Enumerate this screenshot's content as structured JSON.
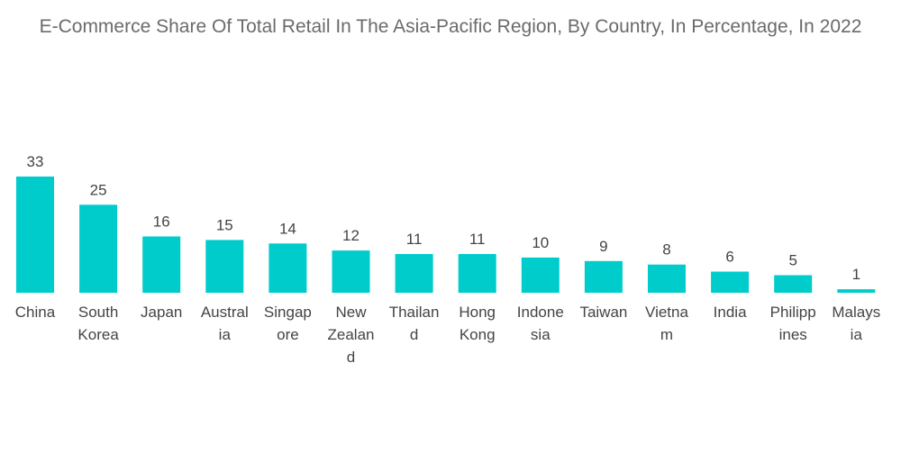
{
  "chart_data": {
    "type": "bar",
    "title": "E-Commerce Share Of Total Retail In The Asia-Pacific Region, By Country, In Percentage, In 2022",
    "categories": [
      "China",
      "South Korea",
      "Japan",
      "Australia",
      "Singapore",
      "New Zealand",
      "Thailand",
      "Hong Kong",
      "Indonesia",
      "Taiwan",
      "Vietnam",
      "India",
      "Philippines",
      "Malaysia"
    ],
    "category_label_lines": [
      [
        "China"
      ],
      [
        "South",
        "Korea"
      ],
      [
        "Japan"
      ],
      [
        "Austral",
        "ia"
      ],
      [
        "Singap",
        "ore"
      ],
      [
        "New",
        "Zealan",
        "d"
      ],
      [
        "Thailan",
        "d"
      ],
      [
        "Hong",
        "Kong"
      ],
      [
        "Indone",
        "sia"
      ],
      [
        "Taiwan"
      ],
      [
        "Vietna",
        "m"
      ],
      [
        "India"
      ],
      [
        "Philipp",
        "ines"
      ],
      [
        "Malays",
        "ia"
      ]
    ],
    "values": [
      33,
      25,
      16,
      15,
      14,
      12,
      11,
      11,
      10,
      9,
      8,
      6,
      5,
      1
    ],
    "ylim": [
      0,
      33
    ],
    "grid": false,
    "legend": "none",
    "bar_color": "#00cccc"
  }
}
